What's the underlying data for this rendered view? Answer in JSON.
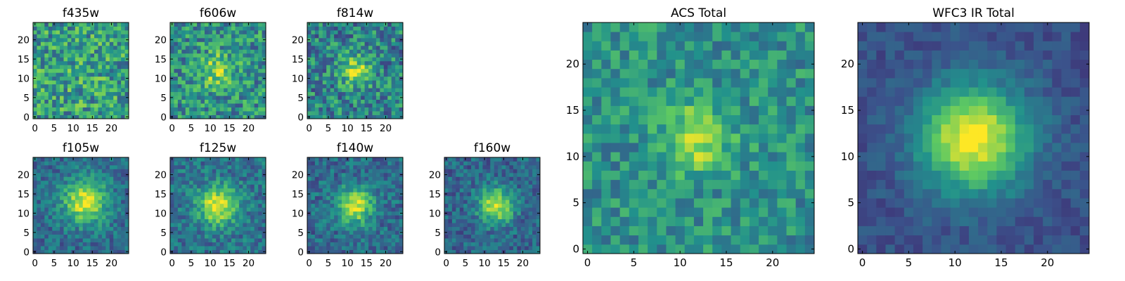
{
  "figure": {
    "colormap": [
      "#440154",
      "#3b528b",
      "#21918c",
      "#5ec962",
      "#fde725"
    ],
    "axis_color": "#000000",
    "background": "#ffffff"
  },
  "chart_data": [
    {
      "type": "heatmap",
      "title": "f435w",
      "grid_size": 25,
      "peak": [
        12,
        12
      ],
      "xlim": [
        0,
        24
      ],
      "ylim": [
        0,
        24
      ],
      "xticks": [
        0,
        5,
        10,
        15,
        20
      ],
      "yticks": [
        0,
        5,
        10,
        15,
        20
      ],
      "xlabel": "",
      "ylabel": "",
      "seed": 3,
      "amp": 0.05,
      "sigma": 5.0,
      "noise": 0.55,
      "base": 0.55
    },
    {
      "type": "heatmap",
      "title": "f606w",
      "grid_size": 25,
      "peak": [
        12,
        12
      ],
      "xlim": [
        0,
        24
      ],
      "ylim": [
        0,
        24
      ],
      "xticks": [
        0,
        5,
        10,
        15,
        20
      ],
      "yticks": [
        0,
        5,
        10,
        15,
        20
      ],
      "xlabel": "",
      "ylabel": "",
      "seed": 7,
      "amp": 0.35,
      "sigma": 3.0,
      "noise": 0.5,
      "base": 0.5
    },
    {
      "type": "heatmap",
      "title": "f814w",
      "grid_size": 25,
      "peak": [
        12,
        12
      ],
      "xlim": [
        0,
        24
      ],
      "ylim": [
        0,
        24
      ],
      "xticks": [
        0,
        5,
        10,
        15,
        20
      ],
      "yticks": [
        0,
        5,
        10,
        15,
        20
      ],
      "xlabel": "",
      "ylabel": "",
      "seed": 11,
      "amp": 0.45,
      "sigma": 2.8,
      "noise": 0.5,
      "base": 0.45
    },
    {
      "type": "heatmap",
      "title": "f105w",
      "grid_size": 25,
      "peak": [
        13,
        13
      ],
      "xlim": [
        0,
        24
      ],
      "ylim": [
        0,
        24
      ],
      "xticks": [
        0,
        5,
        10,
        15,
        20
      ],
      "yticks": [
        0,
        5,
        10,
        15,
        20
      ],
      "xlabel": "",
      "ylabel": "",
      "seed": 19,
      "amp": 0.6,
      "sigma": 4.0,
      "noise": 0.3,
      "base": 0.35
    },
    {
      "type": "heatmap",
      "title": "f125w",
      "grid_size": 25,
      "peak": [
        12,
        12
      ],
      "xlim": [
        0,
        24
      ],
      "ylim": [
        0,
        24
      ],
      "xticks": [
        0,
        5,
        10,
        15,
        20
      ],
      "yticks": [
        0,
        5,
        10,
        15,
        20
      ],
      "xlabel": "",
      "ylabel": "",
      "seed": 23,
      "amp": 0.6,
      "sigma": 3.5,
      "noise": 0.32,
      "base": 0.38
    },
    {
      "type": "heatmap",
      "title": "f140w",
      "grid_size": 25,
      "peak": [
        12,
        12
      ],
      "xlim": [
        0,
        24
      ],
      "ylim": [
        0,
        24
      ],
      "xticks": [
        0,
        5,
        10,
        15,
        20
      ],
      "yticks": [
        0,
        5,
        10,
        15,
        20
      ],
      "xlabel": "",
      "ylabel": "",
      "seed": 29,
      "amp": 0.6,
      "sigma": 3.2,
      "noise": 0.32,
      "base": 0.35
    },
    {
      "type": "heatmap",
      "title": "f160w",
      "grid_size": 25,
      "peak": [
        13,
        12
      ],
      "xlim": [
        0,
        24
      ],
      "ylim": [
        0,
        24
      ],
      "xticks": [
        0,
        5,
        10,
        15,
        20
      ],
      "yticks": [
        0,
        5,
        10,
        15,
        20
      ],
      "xlabel": "",
      "ylabel": "",
      "seed": 31,
      "amp": 0.6,
      "sigma": 3.2,
      "noise": 0.3,
      "base": 0.33
    },
    {
      "type": "heatmap",
      "title": "ACS Total",
      "grid_size": 25,
      "peak": [
        12,
        12
      ],
      "xlim": [
        0,
        24
      ],
      "ylim": [
        0,
        24
      ],
      "xticks": [
        0,
        5,
        10,
        15,
        20
      ],
      "yticks": [
        0,
        5,
        10,
        15,
        20
      ],
      "xlabel": "",
      "ylabel": "",
      "seed": 41,
      "amp": 0.4,
      "sigma": 2.5,
      "noise": 0.35,
      "base": 0.5
    },
    {
      "type": "heatmap",
      "title": "WFC3 IR Total",
      "grid_size": 25,
      "peak": [
        12,
        12
      ],
      "xlim": [
        0,
        24
      ],
      "ylim": [
        0,
        24
      ],
      "xticks": [
        0,
        5,
        10,
        15,
        20
      ],
      "yticks": [
        0,
        5,
        10,
        15,
        20
      ],
      "xlabel": "",
      "ylabel": "",
      "seed": 53,
      "amp": 0.75,
      "sigma": 4.0,
      "noise": 0.15,
      "base": 0.25
    }
  ]
}
